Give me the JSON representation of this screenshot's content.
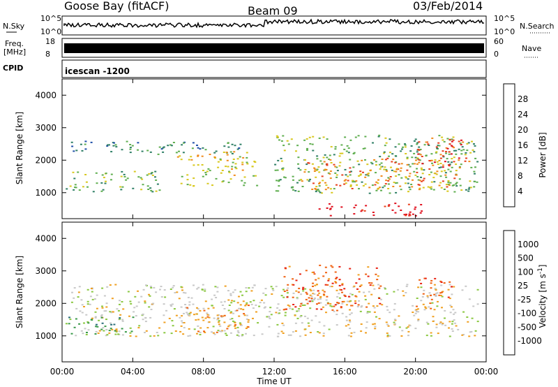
{
  "header": {
    "station": "Goose Bay (fitACF)",
    "beam": "Beam 09",
    "date": "03/Feb/2014"
  },
  "top_panels": {
    "nsky_label": "N.Sky",
    "nsearch_label": "N.Search",
    "nsky_ticks": [
      "10^5",
      "10^0"
    ],
    "nsearch_ticks": [
      "10^5",
      "10^0"
    ],
    "freq_label_1": "Freq.",
    "freq_label_2": "[MHz]",
    "freq_ticks": [
      "18",
      "8"
    ],
    "nave_label": "Nave",
    "nave_ticks": [
      "60",
      "0"
    ],
    "cpid_label": "CPID",
    "cpid_value": "icescan -1200"
  },
  "chart_data": [
    {
      "type": "heatmap",
      "name": "power",
      "ylabel": "Slant Range [km]",
      "xlabel": "Time UT",
      "xlim": [
        "00:00",
        "00:00"
      ],
      "ylim": [
        200,
        4500
      ],
      "x_ticks": [
        "00:00",
        "04:00",
        "08:00",
        "12:00",
        "16:00",
        "20:00",
        "00:00"
      ],
      "y_ticks": [
        "1000",
        "2000",
        "3000",
        "4000"
      ],
      "y_tick_values": [
        1000,
        2000,
        3000,
        4000
      ],
      "colorbar": {
        "label": "Power [dB]",
        "ticks": [
          "4",
          "8",
          "12",
          "16",
          "20",
          "24",
          "28"
        ],
        "colors": [
          "#1a1aff",
          "#1f4fa8",
          "#2f7f66",
          "#5fae4f",
          "#d8c81e",
          "#f08a1c",
          "#e8401e",
          "#e0101e"
        ]
      },
      "regions": [
        {
          "t0": 0.5,
          "t1": 10.5,
          "r0": 2200,
          "r1": 2600,
          "level": 2
        },
        {
          "t0": 0.0,
          "t1": 5.5,
          "r0": 1050,
          "r1": 1700,
          "level": 3
        },
        {
          "t0": 6.5,
          "t1": 11.0,
          "r0": 1200,
          "r1": 2300,
          "level": 4
        },
        {
          "t0": 12.0,
          "t1": 23.5,
          "r0": 1000,
          "r1": 2800,
          "level": 3
        },
        {
          "t0": 14.5,
          "t1": 20.5,
          "r0": 300,
          "r1": 700,
          "level": 7
        },
        {
          "t0": 13.5,
          "t1": 22.5,
          "r0": 1100,
          "r1": 2100,
          "level": 5
        },
        {
          "t0": 20.0,
          "t1": 23.0,
          "r0": 1800,
          "r1": 2700,
          "level": 6
        }
      ]
    },
    {
      "type": "heatmap",
      "name": "velocity",
      "ylabel": "Slant Range [km]",
      "xlabel": "Time UT",
      "xlim": [
        "00:00",
        "00:00"
      ],
      "ylim": [
        200,
        4500
      ],
      "x_ticks": [
        "00:00",
        "04:00",
        "08:00",
        "12:00",
        "16:00",
        "20:00",
        "00:00"
      ],
      "y_ticks": [
        "1000",
        "2000",
        "3000",
        "4000"
      ],
      "y_tick_values": [
        1000,
        2000,
        3000,
        4000
      ],
      "colorbar": {
        "label": "Velocity [m s",
        "label_sup": "-1",
        "label_end": "]",
        "ticks": [
          "1000",
          "500",
          "100",
          "25",
          "-25",
          "-100",
          "-500",
          "-1000"
        ],
        "colors": [
          "#1a3fb0",
          "#2a6e7a",
          "#3a9a4a",
          "#8ac840",
          "#c8c8c8",
          "#f0a020",
          "#f06010",
          "#e82010",
          "#e80000"
        ]
      },
      "regions": [
        {
          "t0": 0.5,
          "t1": 23.5,
          "r0": 1000,
          "r1": 2600,
          "level": 4
        },
        {
          "t0": 0.0,
          "t1": 4.0,
          "r0": 1050,
          "r1": 1600,
          "level": 2
        },
        {
          "t0": 6.5,
          "t1": 10.5,
          "r0": 1100,
          "r1": 2000,
          "level": 5
        },
        {
          "t0": 12.5,
          "t1": 18.0,
          "r0": 1800,
          "r1": 3200,
          "level": 6
        },
        {
          "t0": 20.0,
          "t1": 22.0,
          "r0": 1800,
          "r1": 2800,
          "level": 6
        }
      ]
    }
  ]
}
